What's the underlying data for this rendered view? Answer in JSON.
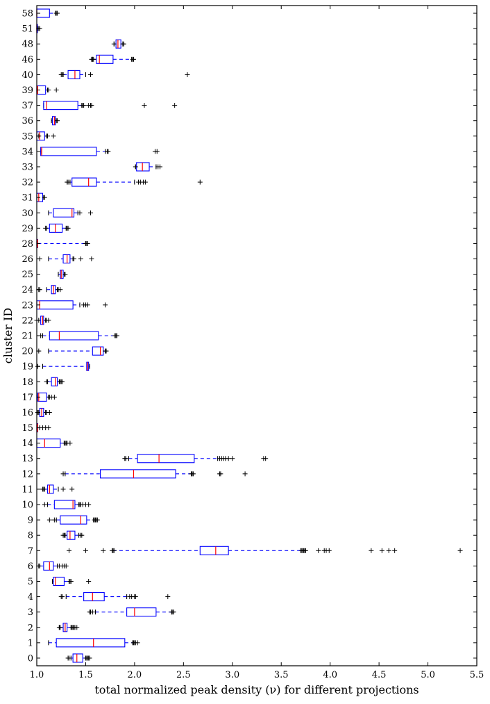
{
  "chart_data": {
    "type": "boxplot",
    "orientation": "horizontal",
    "title": "",
    "xlabel": "total normalized peak density (ν) for different projections",
    "ylabel": "cluster ID",
    "xlim": [
      1.0,
      5.5
    ],
    "x_ticks": [
      "1.0",
      "1.5",
      "2.0",
      "2.5",
      "3.0",
      "3.5",
      "4.0",
      "4.5",
      "5.0",
      "5.5"
    ],
    "grid": false,
    "colors": {
      "box": "#0000ff",
      "median": "#ff0000",
      "whisker": "#0000ff",
      "flier": "#000000"
    },
    "categories": [
      "0",
      "1",
      "2",
      "3",
      "4",
      "5",
      "6",
      "7",
      "8",
      "9",
      "10",
      "11",
      "12",
      "13",
      "14",
      "15",
      "16",
      "17",
      "18",
      "19",
      "20",
      "21",
      "22",
      "23",
      "24",
      "25",
      "26",
      "28",
      "29",
      "30",
      "31",
      "32",
      "33",
      "34",
      "35",
      "36",
      "37",
      "39",
      "40",
      "46",
      "48",
      "51",
      "58"
    ],
    "boxes": [
      {
        "id": "0",
        "q1": 1.37,
        "median": 1.41,
        "q3": 1.47,
        "wlo": 1.35,
        "whi": 1.5,
        "fliers": [
          1.32,
          1.33,
          1.51,
          1.52,
          1.53,
          1.54
        ]
      },
      {
        "id": "1",
        "q1": 1.2,
        "median": 1.58,
        "q3": 1.9,
        "wlo": 1.12,
        "whi": 1.98,
        "fliers": [
          1.99,
          2.0,
          2.01,
          2.03
        ]
      },
      {
        "id": "2",
        "q1": 1.27,
        "median": 1.29,
        "q3": 1.31,
        "wlo": 1.23,
        "whi": 1.35,
        "fliers": [
          1.23,
          1.24,
          1.36,
          1.37,
          1.38,
          1.39,
          1.41
        ]
      },
      {
        "id": "3",
        "q1": 1.92,
        "median": 2.0,
        "q3": 2.22,
        "wlo": 1.6,
        "whi": 2.38,
        "fliers": [
          1.54,
          1.55,
          1.57,
          2.38,
          2.39,
          2.4
        ]
      },
      {
        "id": "4",
        "q1": 1.48,
        "median": 1.57,
        "q3": 1.69,
        "wlo": 1.3,
        "whi": 1.92,
        "fliers": [
          1.25,
          1.26,
          1.95,
          1.97,
          2.0,
          2.01,
          2.34
        ]
      },
      {
        "id": "5",
        "q1": 1.17,
        "median": 1.19,
        "q3": 1.28,
        "wlo": 1.16,
        "whi": 1.33,
        "fliers": [
          1.34,
          1.35,
          1.53
        ]
      },
      {
        "id": "6",
        "q1": 1.07,
        "median": 1.13,
        "q3": 1.17,
        "wlo": 1.03,
        "whi": 1.21,
        "fliers": [
          1.02,
          1.23,
          1.26,
          1.28,
          1.3
        ]
      },
      {
        "id": "7",
        "q1": 2.67,
        "median": 2.83,
        "q3": 2.96,
        "wlo": 1.78,
        "whi": 3.7,
        "fliers": [
          1.33,
          1.5,
          1.68,
          1.77,
          1.79,
          3.71,
          3.72,
          3.73,
          3.74,
          3.75,
          3.88,
          3.94,
          3.96,
          3.99,
          4.42,
          4.53,
          4.6,
          4.66,
          5.33
        ]
      },
      {
        "id": "8",
        "q1": 1.31,
        "median": 1.34,
        "q3": 1.39,
        "wlo": 1.29,
        "whi": 1.43,
        "fliers": [
          1.27,
          1.28,
          1.45,
          1.46
        ]
      },
      {
        "id": "9",
        "q1": 1.24,
        "median": 1.45,
        "q3": 1.51,
        "wlo": 1.2,
        "whi": 1.58,
        "fliers": [
          1.13,
          1.18,
          1.59,
          1.6,
          1.61,
          1.62
        ]
      },
      {
        "id": "10",
        "q1": 1.18,
        "median": 1.37,
        "q3": 1.39,
        "wlo": 1.11,
        "whi": 1.43,
        "fliers": [
          1.08,
          1.44,
          1.45,
          1.47,
          1.5,
          1.53
        ]
      },
      {
        "id": "11",
        "q1": 1.11,
        "median": 1.13,
        "q3": 1.17,
        "wlo": 1.08,
        "whi": 1.22,
        "fliers": [
          1.06,
          1.07,
          1.27,
          1.36
        ]
      },
      {
        "id": "12",
        "q1": 1.65,
        "median": 1.99,
        "q3": 2.42,
        "wlo": 1.29,
        "whi": 2.58,
        "fliers": [
          1.27,
          2.58,
          2.59,
          2.6,
          2.87,
          2.88,
          3.13
        ]
      },
      {
        "id": "13",
        "q1": 2.03,
        "median": 2.25,
        "q3": 2.61,
        "wlo": 1.94,
        "whi": 2.85,
        "fliers": [
          1.9,
          1.91,
          2.87,
          2.89,
          2.91,
          2.93,
          2.96,
          3.0,
          3.32,
          3.34
        ]
      },
      {
        "id": "14",
        "q1": 1.0,
        "median": 1.08,
        "q3": 1.24,
        "wlo": 1.0,
        "whi": 1.28,
        "fliers": [
          1.29,
          1.3,
          1.31,
          1.34
        ]
      },
      {
        "id": "15",
        "q1": 1.0,
        "median": 1.01,
        "q3": 1.01,
        "wlo": 1.0,
        "whi": 1.03,
        "fliers": [
          1.06,
          1.09,
          1.12
        ]
      },
      {
        "id": "16",
        "q1": 1.03,
        "median": 1.05,
        "q3": 1.07,
        "wlo": 1.02,
        "whi": 1.09,
        "fliers": [
          1.01,
          1.1,
          1.13
        ]
      },
      {
        "id": "17",
        "q1": 1.01,
        "median": 1.02,
        "q3": 1.1,
        "wlo": 1.0,
        "whi": 1.12,
        "fliers": [
          1.13,
          1.15,
          1.18
        ]
      },
      {
        "id": "18",
        "q1": 1.15,
        "median": 1.19,
        "q3": 1.21,
        "wlo": 1.11,
        "whi": 1.23,
        "fliers": [
          1.1,
          1.24,
          1.25,
          1.26
        ]
      },
      {
        "id": "19",
        "q1": 1.51,
        "median": 1.52,
        "q3": 1.53,
        "wlo": 1.06,
        "whi": 1.54,
        "fliers": [
          1.01
        ]
      },
      {
        "id": "20",
        "q1": 1.57,
        "median": 1.65,
        "q3": 1.68,
        "wlo": 1.12,
        "whi": 1.7,
        "fliers": [
          1.02,
          1.7,
          1.71
        ]
      },
      {
        "id": "21",
        "q1": 1.13,
        "median": 1.23,
        "q3": 1.63,
        "wlo": 1.06,
        "whi": 1.8,
        "fliers": [
          1.04,
          1.8,
          1.81,
          1.82
        ]
      },
      {
        "id": "22",
        "q1": 1.04,
        "median": 1.06,
        "q3": 1.07,
        "wlo": 1.02,
        "whi": 1.09,
        "fliers": [
          1.0,
          1.1,
          1.12
        ]
      },
      {
        "id": "23",
        "q1": 1.0,
        "median": 1.03,
        "q3": 1.37,
        "wlo": 1.0,
        "whi": 1.44,
        "fliers": [
          1.48,
          1.5,
          1.52,
          1.7
        ]
      },
      {
        "id": "24",
        "q1": 1.15,
        "median": 1.17,
        "q3": 1.19,
        "wlo": 1.1,
        "whi": 1.21,
        "fliers": [
          1.02,
          1.03,
          1.22,
          1.24
        ]
      },
      {
        "id": "25",
        "q1": 1.24,
        "median": 1.25,
        "q3": 1.27,
        "wlo": 1.22,
        "whi": 1.28,
        "fliers": [
          1.29
        ]
      },
      {
        "id": "26",
        "q1": 1.27,
        "median": 1.31,
        "q3": 1.34,
        "wlo": 1.12,
        "whi": 1.37,
        "fliers": [
          1.03,
          1.38,
          1.45,
          1.56
        ]
      },
      {
        "id": "28",
        "q1": 1.0,
        "median": 1.01,
        "q3": 1.01,
        "wlo": 1.0,
        "whi": 1.5,
        "fliers": [
          1.5,
          1.51,
          1.52
        ]
      },
      {
        "id": "29",
        "q1": 1.13,
        "median": 1.19,
        "q3": 1.26,
        "wlo": 1.1,
        "whi": 1.3,
        "fliers": [
          1.09,
          1.31,
          1.32
        ]
      },
      {
        "id": "30",
        "q1": 1.17,
        "median": 1.36,
        "q3": 1.38,
        "wlo": 1.12,
        "whi": 1.42,
        "fliers": [
          1.44,
          1.55
        ]
      },
      {
        "id": "31",
        "q1": 1.0,
        "median": 1.02,
        "q3": 1.06,
        "wlo": 1.0,
        "whi": 1.07,
        "fliers": [
          1.08
        ]
      },
      {
        "id": "32",
        "q1": 1.36,
        "median": 1.53,
        "q3": 1.61,
        "wlo": 1.34,
        "whi": 2.0,
        "fliers": [
          1.31,
          1.32,
          2.04,
          2.06,
          2.09,
          2.11,
          2.67
        ]
      },
      {
        "id": "33",
        "q1": 2.02,
        "median": 2.08,
        "q3": 2.15,
        "wlo": 2.01,
        "whi": 2.22,
        "fliers": [
          2.01,
          2.24,
          2.26
        ]
      },
      {
        "id": "34",
        "q1": 1.04,
        "median": 1.05,
        "q3": 1.61,
        "wlo": 1.04,
        "whi": 1.7,
        "fliers": [
          1.72,
          1.73,
          2.21,
          2.23
        ]
      },
      {
        "id": "35",
        "q1": 1.0,
        "median": 1.03,
        "q3": 1.08,
        "wlo": 1.0,
        "whi": 1.1,
        "fliers": [
          1.02,
          1.11,
          1.17
        ]
      },
      {
        "id": "36",
        "q1": 1.16,
        "median": 1.18,
        "q3": 1.19,
        "wlo": 1.15,
        "whi": 1.2,
        "fliers": [
          1.21
        ]
      },
      {
        "id": "37",
        "q1": 1.07,
        "median": 1.1,
        "q3": 1.42,
        "wlo": 1.07,
        "whi": 1.46,
        "fliers": [
          1.47,
          1.48,
          1.53,
          1.55,
          1.56,
          2.1,
          2.41
        ]
      },
      {
        "id": "39",
        "q1": 1.0,
        "median": 1.01,
        "q3": 1.09,
        "wlo": 1.0,
        "whi": 1.11,
        "fliers": [
          1.12,
          1.2
        ]
      },
      {
        "id": "40",
        "q1": 1.32,
        "median": 1.39,
        "q3": 1.44,
        "wlo": 1.27,
        "whi": 1.5,
        "fliers": [
          1.25,
          1.26,
          1.55,
          2.54
        ]
      },
      {
        "id": "46",
        "q1": 1.61,
        "median": 1.64,
        "q3": 1.78,
        "wlo": 1.57,
        "whi": 1.97,
        "fliers": [
          1.56,
          1.57,
          1.58,
          1.98,
          1.99
        ]
      },
      {
        "id": "48",
        "q1": 1.81,
        "median": 1.83,
        "q3": 1.86,
        "wlo": 1.79,
        "whi": 1.88,
        "fliers": [
          1.79,
          1.88,
          1.89
        ]
      },
      {
        "id": "51",
        "q1": 1.0,
        "median": 1.0,
        "q3": 1.0,
        "wlo": 1.0,
        "whi": 1.01,
        "fliers": [
          1.02,
          1.03
        ]
      },
      {
        "id": "58",
        "q1": 1.0,
        "median": 1.0,
        "q3": 1.13,
        "wlo": 1.0,
        "whi": 1.19,
        "fliers": [
          1.2,
          1.21
        ]
      }
    ]
  }
}
